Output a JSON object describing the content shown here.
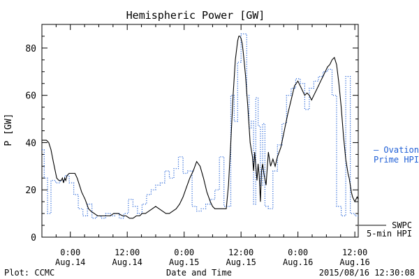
{
  "chart_data": {
    "type": "line",
    "title": "Hemispheric Power [GW]",
    "ylabel": "P [GW]",
    "xlabel": "Date and Time",
    "ylim": [
      0,
      90
    ],
    "y_ticks": [
      0,
      20,
      40,
      60,
      80
    ],
    "xlim": [
      -0.25,
      2.53
    ],
    "x_unit": "days since 2015-08-14 00:00 UT",
    "x_ticks": [
      {
        "x": 0.0,
        "time": "0:00",
        "date": "Aug.14"
      },
      {
        "x": 0.5,
        "time": "12:00",
        "date": "Aug.14"
      },
      {
        "x": 1.0,
        "time": "0:00",
        "date": "Aug.15"
      },
      {
        "x": 1.5,
        "time": "12:00",
        "date": "Aug.15"
      },
      {
        "x": 2.0,
        "time": "0:00",
        "date": "Aug.16"
      },
      {
        "x": 2.5,
        "time": "12:00",
        "date": "Aug.16"
      }
    ],
    "grid": false,
    "series": [
      {
        "name": "SWPC 5-min HPI",
        "color": "#000000",
        "style": "solid",
        "x": [
          -0.25,
          -0.21,
          -0.19,
          -0.17,
          -0.15,
          -0.12,
          -0.1,
          -0.08,
          -0.07,
          -0.06,
          -0.05,
          -0.04,
          -0.03,
          -0.01,
          0.0,
          0.02,
          0.04,
          0.06,
          0.08,
          0.1,
          0.13,
          0.16,
          0.18,
          0.21,
          0.24,
          0.28,
          0.32,
          0.35,
          0.38,
          0.42,
          0.46,
          0.49,
          0.52,
          0.55,
          0.58,
          0.61,
          0.63,
          0.66,
          0.69,
          0.72,
          0.75,
          0.78,
          0.81,
          0.84,
          0.87,
          0.9,
          0.93,
          0.96,
          0.99,
          1.02,
          1.05,
          1.08,
          1.11,
          1.14,
          1.17,
          1.2,
          1.23,
          1.25,
          1.27,
          1.29,
          1.31,
          1.33,
          1.35,
          1.37,
          1.39,
          1.41,
          1.43,
          1.45,
          1.47,
          1.48,
          1.49,
          1.5,
          1.51,
          1.52,
          1.54,
          1.56,
          1.58,
          1.6,
          1.61,
          1.62,
          1.63,
          1.64,
          1.65,
          1.66,
          1.67,
          1.68,
          1.69,
          1.7,
          1.72,
          1.74,
          1.76,
          1.78,
          1.8,
          1.82,
          1.85,
          1.88,
          1.91,
          1.94,
          1.97,
          2.0,
          2.03,
          2.06,
          2.08,
          2.1,
          2.12,
          2.14,
          2.16,
          2.18,
          2.2,
          2.22,
          2.24,
          2.26,
          2.28,
          2.3,
          2.32,
          2.34,
          2.36,
          2.38,
          2.4,
          2.42,
          2.43,
          2.44,
          2.45,
          2.46,
          2.47,
          2.48,
          2.49,
          2.5,
          2.51,
          2.52,
          2.53
        ],
        "y": [
          41,
          41,
          40,
          37,
          32,
          25,
          24,
          24,
          25,
          23,
          25,
          24,
          26,
          27,
          27,
          27,
          27,
          25,
          22,
          19,
          16,
          12,
          11,
          10,
          9,
          9,
          9,
          9,
          10,
          10,
          9,
          9,
          8,
          8,
          9,
          9,
          10,
          10,
          11,
          12,
          13,
          12,
          11,
          10,
          10,
          11,
          12,
          14,
          17,
          21,
          25,
          28,
          32,
          30,
          25,
          19,
          15,
          13,
          12,
          12,
          12,
          12,
          12,
          12,
          22,
          40,
          60,
          75,
          83,
          85,
          85,
          84,
          82,
          78,
          68,
          55,
          40,
          34,
          28,
          36,
          30,
          24,
          31,
          26,
          15,
          28,
          31,
          27,
          22,
          36,
          30,
          33,
          30,
          34,
          38,
          45,
          52,
          58,
          64,
          66,
          63,
          60,
          61,
          60,
          58,
          60,
          62,
          64,
          66,
          68,
          70,
          72,
          73,
          75,
          76,
          73,
          65,
          55,
          43,
          33,
          30,
          27,
          25,
          22,
          19,
          17,
          16,
          15,
          16,
          17,
          16
        ],
        "y_source_note": "values estimated from axes"
      },
      {
        "name": "Ovation Prime HPI",
        "color": "#1f5fd6",
        "style": "dotted-step",
        "x": [
          -0.25,
          -0.23,
          -0.2,
          -0.17,
          -0.13,
          -0.09,
          -0.05,
          -0.01,
          0.03,
          0.07,
          0.11,
          0.15,
          0.19,
          0.23,
          0.27,
          0.31,
          0.35,
          0.39,
          0.43,
          0.47,
          0.51,
          0.55,
          0.59,
          0.63,
          0.67,
          0.71,
          0.75,
          0.79,
          0.83,
          0.87,
          0.91,
          0.95,
          0.99,
          1.03,
          1.07,
          1.11,
          1.15,
          1.19,
          1.23,
          1.27,
          1.31,
          1.35,
          1.38,
          1.41,
          1.44,
          1.47,
          1.5,
          1.53,
          1.55,
          1.57,
          1.59,
          1.61,
          1.63,
          1.65,
          1.67,
          1.69,
          1.71,
          1.74,
          1.78,
          1.82,
          1.86,
          1.9,
          1.94,
          1.98,
          2.02,
          2.06,
          2.1,
          2.14,
          2.18,
          2.22,
          2.26,
          2.3,
          2.34,
          2.38,
          2.42,
          2.46,
          2.5,
          2.53
        ],
        "y": [
          37,
          25,
          10,
          24,
          23,
          24,
          26,
          23,
          18,
          12,
          9,
          14,
          8,
          9,
          8,
          10,
          9,
          10,
          8,
          10,
          16,
          13,
          10,
          14,
          18,
          20,
          22,
          23,
          28,
          25,
          29,
          34,
          27,
          28,
          13,
          11,
          12,
          14,
          16,
          20,
          34,
          13,
          13,
          60,
          49,
          74,
          86,
          86,
          60,
          46,
          49,
          14,
          59,
          47,
          22,
          48,
          13,
          12,
          28,
          39,
          48,
          60,
          63,
          67,
          65,
          54,
          63,
          66,
          68,
          70,
          71,
          60,
          13,
          9,
          68,
          10,
          9,
          9
        ]
      }
    ],
    "legend": {
      "placement": "right",
      "entries": [
        {
          "label_line1": "— Ovation",
          "label_line2": "Prime HPI",
          "color": "#1f5fd6"
        },
        {
          "label_line1": "SWPC",
          "label_line2": "5-min HPI",
          "color": "#000000"
        }
      ]
    },
    "footer": {
      "left": "Plot: CCMC",
      "center": "Date and Time",
      "right": "2015/08/16 12:30:08"
    }
  }
}
